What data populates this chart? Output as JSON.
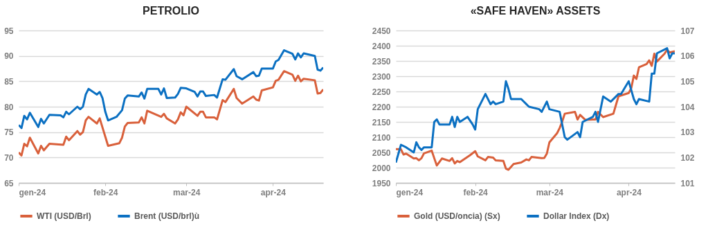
{
  "chart_data": [
    {
      "type": "line",
      "title": "PETROLIO",
      "xlim": [
        "2024-01-01",
        "2024-04-19"
      ],
      "xticks": [
        {
          "value": "2024-01-01",
          "label": "gen-24"
        },
        {
          "value": "2024-02-01",
          "label": "feb-24"
        },
        {
          "value": "2024-03-01",
          "label": "mar-24"
        },
        {
          "value": "2024-04-01",
          "label": "apr-24"
        }
      ],
      "ylim": [
        65,
        95
      ],
      "yticks": [
        65,
        70,
        75,
        80,
        85,
        90,
        95
      ],
      "grid": "y",
      "legend": "bottom",
      "series": [
        {
          "name": "WTI (USD/Brl)",
          "color": "#d9603b",
          "x": [
            "2024-01-01",
            "2024-01-02",
            "2024-01-03",
            "2024-01-04",
            "2024-01-05",
            "2024-01-08",
            "2024-01-09",
            "2024-01-10",
            "2024-01-12",
            "2024-01-17",
            "2024-01-18",
            "2024-01-19",
            "2024-01-22",
            "2024-01-23",
            "2024-01-24",
            "2024-01-25",
            "2024-01-26",
            "2024-01-29",
            "2024-01-30",
            "2024-02-01",
            "2024-02-02",
            "2024-02-06",
            "2024-02-07",
            "2024-02-08",
            "2024-02-09",
            "2024-02-13",
            "2024-02-14",
            "2024-02-15",
            "2024-02-16",
            "2024-02-21",
            "2024-02-22",
            "2024-02-23",
            "2024-02-26",
            "2024-02-27",
            "2024-02-28",
            "2024-02-29",
            "2024-03-01",
            "2024-03-05",
            "2024-03-06",
            "2024-03-07",
            "2024-03-08",
            "2024-03-11",
            "2024-03-12",
            "2024-03-14",
            "2024-03-15",
            "2024-03-18",
            "2024-03-19",
            "2024-03-21",
            "2024-03-25",
            "2024-03-26",
            "2024-03-27",
            "2024-03-28",
            "2024-04-01",
            "2024-04-02",
            "2024-04-03",
            "2024-04-05",
            "2024-04-08",
            "2024-04-09",
            "2024-04-10",
            "2024-04-11",
            "2024-04-12",
            "2024-04-16",
            "2024-04-17",
            "2024-04-18",
            "2024-04-19"
          ],
          "values": [
            71.0,
            70.4,
            72.7,
            72.2,
            73.9,
            70.8,
            72.3,
            71.4,
            72.7,
            72.5,
            74.1,
            73.4,
            75.2,
            74.5,
            75.0,
            77.3,
            78.0,
            76.7,
            77.7,
            74.1,
            72.3,
            72.8,
            73.9,
            76.1,
            76.8,
            76.9,
            77.9,
            76.7,
            79.2,
            78.0,
            78.6,
            77.7,
            76.7,
            77.5,
            78.9,
            78.3,
            80.0,
            78.2,
            79.0,
            79.0,
            77.9,
            77.9,
            77.5,
            81.3,
            80.9,
            83.5,
            81.7,
            80.6,
            82.0,
            81.4,
            81.2,
            83.2,
            83.8,
            85.1,
            85.3,
            87.0,
            86.3,
            85.1,
            86.1,
            85.0,
            85.5,
            85.2,
            82.6,
            82.7,
            83.4
          ]
        },
        {
          "name": "Brent (USD/brl)ù",
          "color": "#0b70c2",
          "x": [
            "2024-01-01",
            "2024-01-02",
            "2024-01-03",
            "2024-01-04",
            "2024-01-05",
            "2024-01-08",
            "2024-01-09",
            "2024-01-10",
            "2024-01-12",
            "2024-01-16",
            "2024-01-17",
            "2024-01-18",
            "2024-01-19",
            "2024-01-22",
            "2024-01-23",
            "2024-01-24",
            "2024-01-25",
            "2024-01-26",
            "2024-01-29",
            "2024-01-30",
            "2024-01-31",
            "2024-02-01",
            "2024-02-02",
            "2024-02-05",
            "2024-02-07",
            "2024-02-08",
            "2024-02-09",
            "2024-02-13",
            "2024-02-14",
            "2024-02-15",
            "2024-02-16",
            "2024-02-20",
            "2024-02-21",
            "2024-02-22",
            "2024-02-23",
            "2024-02-26",
            "2024-02-27",
            "2024-02-28",
            "2024-03-01",
            "2024-03-04",
            "2024-03-05",
            "2024-03-06",
            "2024-03-07",
            "2024-03-08",
            "2024-03-11",
            "2024-03-12",
            "2024-03-14",
            "2024-03-15",
            "2024-03-18",
            "2024-03-19",
            "2024-03-21",
            "2024-03-25",
            "2024-03-26",
            "2024-03-27",
            "2024-03-28",
            "2024-04-01",
            "2024-04-02",
            "2024-04-03",
            "2024-04-05",
            "2024-04-08",
            "2024-04-09",
            "2024-04-10",
            "2024-04-11",
            "2024-04-12",
            "2024-04-16",
            "2024-04-17",
            "2024-04-18",
            "2024-04-19"
          ],
          "values": [
            76.4,
            75.8,
            78.2,
            77.5,
            78.8,
            76.0,
            77.6,
            76.7,
            78.4,
            78.3,
            77.9,
            79.0,
            78.5,
            80.0,
            79.5,
            80.0,
            82.4,
            83.5,
            82.4,
            82.9,
            81.7,
            79.0,
            77.3,
            78.0,
            79.3,
            81.6,
            82.2,
            82.0,
            82.8,
            81.6,
            83.5,
            83.5,
            82.4,
            83.6,
            81.7,
            81.8,
            82.5,
            83.7,
            83.6,
            82.9,
            82.0,
            83.0,
            83.0,
            82.1,
            82.3,
            81.8,
            85.4,
            85.3,
            87.4,
            86.0,
            85.4,
            86.8,
            86.0,
            86.1,
            87.5,
            87.5,
            88.9,
            89.2,
            91.1,
            90.4,
            89.3,
            90.5,
            89.7,
            90.5,
            90.0,
            87.3,
            87.1,
            87.7
          ]
        }
      ]
    },
    {
      "type": "line",
      "title": "«SAFE HAVEN» ASSETS",
      "xlim": [
        "2024-01-01",
        "2024-04-19"
      ],
      "xticks": [
        {
          "value": "2024-01-01",
          "label": "gen-24"
        },
        {
          "value": "2024-02-01",
          "label": "feb-24"
        },
        {
          "value": "2024-03-01",
          "label": "mar-24"
        },
        {
          "value": "2024-04-01",
          "label": "apr-24"
        }
      ],
      "ylim": [
        1950,
        2450
      ],
      "yticks": [
        1950,
        2000,
        2050,
        2100,
        2150,
        2200,
        2250,
        2300,
        2350,
        2400,
        2450
      ],
      "y2lim": [
        101,
        107
      ],
      "y2ticks": [
        101,
        102,
        103,
        104,
        105,
        106,
        107
      ],
      "grid": "y",
      "legend": "bottom",
      "series": [
        {
          "name": "Gold (USD/oncia) (Sx)",
          "color": "#d9603b",
          "x": [
            "2024-01-01",
            "2024-01-03",
            "2024-01-04",
            "2024-01-05",
            "2024-01-08",
            "2024-01-09",
            "2024-01-10",
            "2024-01-11",
            "2024-01-12",
            "2024-01-15",
            "2024-01-16",
            "2024-01-17",
            "2024-01-19",
            "2024-01-22",
            "2024-01-23",
            "2024-01-24",
            "2024-01-25",
            "2024-01-26",
            "2024-01-30",
            "2024-02-01",
            "2024-02-02",
            "2024-02-05",
            "2024-02-06",
            "2024-02-08",
            "2024-02-09",
            "2024-02-12",
            "2024-02-13",
            "2024-02-14",
            "2024-02-16",
            "2024-02-19",
            "2024-02-21",
            "2024-02-22",
            "2024-02-23",
            "2024-02-27",
            "2024-02-28",
            "2024-02-29",
            "2024-03-01",
            "2024-03-04",
            "2024-03-05",
            "2024-03-06",
            "2024-03-07",
            "2024-03-11",
            "2024-03-12",
            "2024-03-13",
            "2024-03-15",
            "2024-03-18",
            "2024-03-19",
            "2024-03-20",
            "2024-03-22",
            "2024-03-26",
            "2024-03-28",
            "2024-04-01",
            "2024-04-02",
            "2024-04-03",
            "2024-04-04",
            "2024-04-05",
            "2024-04-08",
            "2024-04-09",
            "2024-04-10",
            "2024-04-11",
            "2024-04-12",
            "2024-04-15",
            "2024-04-16",
            "2024-04-17",
            "2024-04-19"
          ],
          "values": [
            2061,
            2060,
            2043,
            2046,
            2030,
            2031,
            2024,
            2031,
            2047,
            2056,
            2031,
            2007,
            2030,
            2022,
            2031,
            2014,
            2022,
            2018,
            2041,
            2054,
            2037,
            2024,
            2035,
            2033,
            2024,
            2022,
            1997,
            1993,
            2012,
            2017,
            2027,
            2024,
            2035,
            2031,
            2032,
            2046,
            2083,
            2113,
            2130,
            2151,
            2177,
            2183,
            2158,
            2173,
            2157,
            2158,
            2158,
            2183,
            2166,
            2177,
            2234,
            2245,
            2261,
            2302,
            2291,
            2329,
            2340,
            2352,
            2334,
            2374,
            2348,
            2374,
            2386,
            2378,
            2382
          ]
        },
        {
          "name": "Dollar Index (Dx)",
          "color": "#0b70c2",
          "axis": "y2",
          "x": [
            "2024-01-01",
            "2024-01-03",
            "2024-01-05",
            "2024-01-08",
            "2024-01-09",
            "2024-01-10",
            "2024-01-11",
            "2024-01-12",
            "2024-01-15",
            "2024-01-16",
            "2024-01-17",
            "2024-01-18",
            "2024-01-22",
            "2024-01-23",
            "2024-01-24",
            "2024-01-25",
            "2024-01-26",
            "2024-01-29",
            "2024-01-31",
            "2024-02-01",
            "2024-02-02",
            "2024-02-05",
            "2024-02-07",
            "2024-02-08",
            "2024-02-09",
            "2024-02-12",
            "2024-02-13",
            "2024-02-14",
            "2024-02-15",
            "2024-02-19",
            "2024-02-21",
            "2024-02-22",
            "2024-02-26",
            "2024-02-27",
            "2024-02-29",
            "2024-03-01",
            "2024-03-05",
            "2024-03-07",
            "2024-03-08",
            "2024-03-12",
            "2024-03-13",
            "2024-03-14",
            "2024-03-18",
            "2024-03-19",
            "2024-03-20",
            "2024-03-22",
            "2024-03-25",
            "2024-03-27",
            "2024-03-28",
            "2024-03-29",
            "2024-04-01",
            "2024-04-03",
            "2024-04-04",
            "2024-04-05",
            "2024-04-09",
            "2024-04-10",
            "2024-04-11",
            "2024-04-12",
            "2024-04-16",
            "2024-04-17",
            "2024-04-18",
            "2024-04-19"
          ],
          "values": [
            101.8,
            102.5,
            102.4,
            102.2,
            102.6,
            102.4,
            102.3,
            102.4,
            102.4,
            103.4,
            103.5,
            103.3,
            103.3,
            103.6,
            103.2,
            103.6,
            103.4,
            103.6,
            103.3,
            103.1,
            103.9,
            104.5,
            104.1,
            104.2,
            104.1,
            104.2,
            105.0,
            104.7,
            104.3,
            104.3,
            104.1,
            104.0,
            103.9,
            103.8,
            104.2,
            103.9,
            103.8,
            102.8,
            102.7,
            103.0,
            102.8,
            103.4,
            103.6,
            103.8,
            103.4,
            104.4,
            104.2,
            104.4,
            104.5,
            104.5,
            105.0,
            104.3,
            104.1,
            104.3,
            104.2,
            105.3,
            105.3,
            106.1,
            106.3,
            105.9,
            106.1,
            106.1
          ]
        }
      ]
    }
  ]
}
